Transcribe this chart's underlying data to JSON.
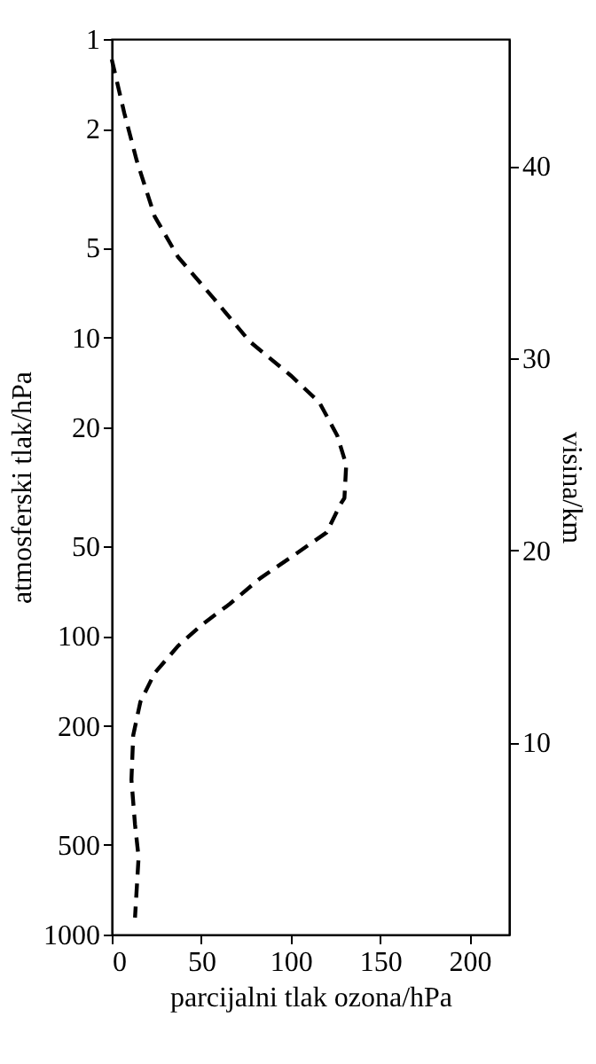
{
  "chart_data": {
    "type": "line",
    "xlabel": "parcijalni tlak ozona/hPa",
    "ylabel": "atmosferski tlak/hPa",
    "y2label": "visina/km",
    "series": [
      {
        "color": "#000000",
        "x": [
          0,
          7,
          14,
          24,
          37,
          57,
          77,
          100,
          116,
          126,
          131,
          130,
          128,
          120,
          103,
          83,
          66,
          50,
          37,
          24,
          16,
          12,
          11,
          13,
          15,
          13
        ],
        "values": [
          1.17,
          1.77,
          2.56,
          3.93,
          5.37,
          7.4,
          10.3,
          13.4,
          16.5,
          21.3,
          26.7,
          34.5,
          36,
          45,
          53,
          64,
          78,
          92,
          108,
          133,
          166,
          215,
          303,
          428,
          551,
          877
        ]
      }
    ],
    "xlim": [
      0,
      222
    ],
    "xticks": [
      0,
      50,
      100,
      150,
      200
    ],
    "ylim": [
      1000,
      1
    ],
    "yticks": [
      1,
      2,
      5,
      10,
      20,
      50,
      100,
      200,
      500,
      1000
    ],
    "log": "y",
    "y2lim": [
      0,
      46.6
    ],
    "y2ticks": [
      10,
      20,
      30,
      40
    ],
    "line_style": "dashed",
    "marker": "none",
    "grid": false
  }
}
